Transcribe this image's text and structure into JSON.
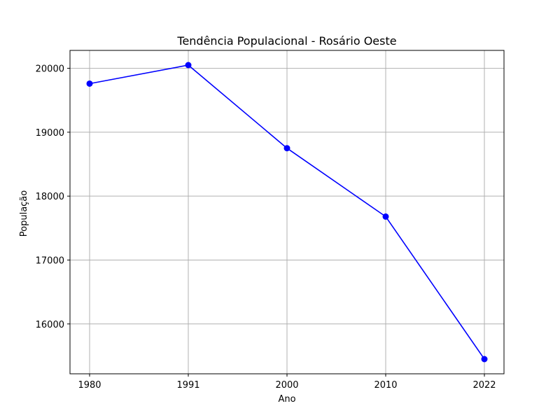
{
  "chart_data": {
    "type": "line",
    "title": "Tendência Populacional - Rosário Oeste",
    "xlabel": "Ano",
    "ylabel": "População",
    "categories": [
      "1980",
      "1991",
      "2000",
      "2010",
      "2022"
    ],
    "series": [
      {
        "values": [
          19760,
          20050,
          18750,
          17680,
          15450
        ],
        "color": "#0000ff",
        "marker": "circle"
      }
    ],
    "ylim": [
      15220,
      20280
    ],
    "yticks": [
      16000,
      17000,
      18000,
      19000,
      20000
    ],
    "grid": true,
    "colors": {
      "line": "#0000ff",
      "grid": "#b0b0b0",
      "axes": "#000000"
    }
  }
}
